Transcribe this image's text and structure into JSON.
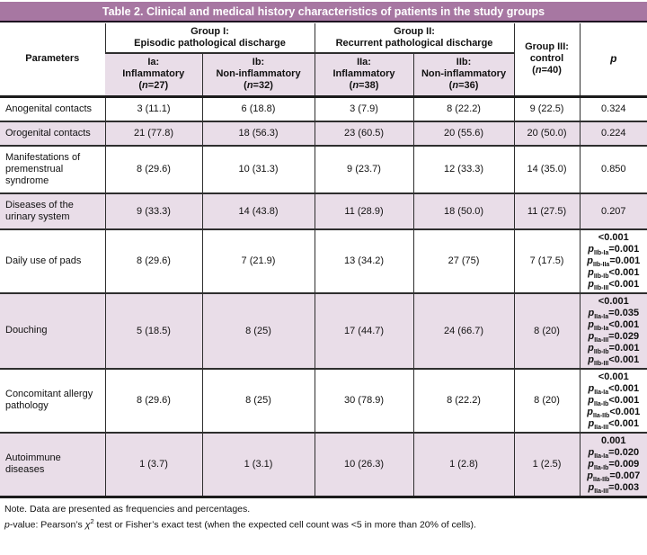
{
  "title": "Table 2. Clinical and medical history characteristics of patients in the study groups",
  "colors": {
    "title_bg": "#a777a2",
    "title_text": "#ffffff",
    "row_shade": "#e9dde8",
    "rule": "#2e2e2e"
  },
  "header": {
    "parameters": "Parameters",
    "p_label": "p",
    "group1": {
      "line1": "Group I:",
      "line2": "Episodic pathological discharge"
    },
    "group2": {
      "line1": "Group II:",
      "line2": "Recurrent pathological discharge"
    },
    "group3": {
      "line1": "Group III:",
      "line2": "control",
      "n_text": "(n=40)"
    },
    "subgroups": [
      {
        "code": "Ia:",
        "type": "Inflammatory",
        "n_text": "(n=27)"
      },
      {
        "code": "Ib:",
        "type": "Non-inflammatory",
        "n_text": "(n=32)"
      },
      {
        "code": "IIa:",
        "type": "Inflammatory",
        "n_text": "(n=38)"
      },
      {
        "code": "IIb:",
        "type": "Non-inflammatory",
        "n_text": "(n=36)"
      }
    ]
  },
  "rows": [
    {
      "parameter": "Anogenital contacts",
      "shaded": false,
      "values": [
        "3 (11.1)",
        "6 (18.8)",
        "3 (7.9)",
        "8 (22.2)",
        "9 (22.5)"
      ],
      "p_lines": [
        {
          "text": "0.324"
        }
      ]
    },
    {
      "parameter": "Orogenital contacts",
      "shaded": true,
      "values": [
        "21 (77.8)",
        "18 (56.3)",
        "23 (60.5)",
        "20 (55.6)",
        "20 (50.0)"
      ],
      "p_lines": [
        {
          "text": "0.224"
        }
      ]
    },
    {
      "parameter": "Manifestations of premenstrual syndrome",
      "shaded": false,
      "values": [
        "8 (29.6)",
        "10 (31.3)",
        "9 (23.7)",
        "12 (33.3)",
        "14 (35.0)"
      ],
      "p_lines": [
        {
          "text": "0.850"
        }
      ]
    },
    {
      "parameter": "Diseases of the urinary system",
      "shaded": true,
      "values": [
        "9 (33.3)",
        "14 (43.8)",
        "11 (28.9)",
        "18 (50.0)",
        "11 (27.5)"
      ],
      "p_lines": [
        {
          "text": "0.207"
        }
      ]
    },
    {
      "parameter": "Daily use of pads",
      "shaded": false,
      "values": [
        "8 (29.6)",
        "7 (21.9)",
        "13 (34.2)",
        "27 (75)",
        "7 (17.5)"
      ],
      "p_lines": [
        {
          "text": "<0.001"
        },
        {
          "sub": "IIb-Ia",
          "text": "=0.001"
        },
        {
          "sub": "IIb-IIa",
          "text": "=0.001"
        },
        {
          "sub": "IIb-Ib",
          "text": "<0.001"
        },
        {
          "sub": "IIb-III",
          "text": "<0.001"
        }
      ]
    },
    {
      "parameter": "Douching",
      "shaded": true,
      "values": [
        "5 (18.5)",
        "8 (25)",
        "17 (44.7)",
        "24 (66.7)",
        "8 (20)"
      ],
      "p_lines": [
        {
          "text": "<0.001"
        },
        {
          "sub": "IIa-Ia",
          "text": "=0.035"
        },
        {
          "sub": "IIb-Ia",
          "text": "<0.001"
        },
        {
          "sub": "IIa-III",
          "text": "=0.029"
        },
        {
          "sub": "IIb-Ib",
          "text": "=0.001"
        },
        {
          "sub": "IIb-III",
          "text": "<0.001"
        }
      ]
    },
    {
      "parameter": "Concomitant allergy pathology",
      "shaded": false,
      "values": [
        "8 (29.6)",
        "8 (25)",
        "30 (78.9)",
        "8 (22.2)",
        "8 (20)"
      ],
      "p_lines": [
        {
          "text": "<0.001"
        },
        {
          "sub": "IIa-Ia",
          "text": "<0.001"
        },
        {
          "sub": "IIa-Ib",
          "text": "<0.001"
        },
        {
          "sub": "IIa-IIb",
          "text": "<0.001"
        },
        {
          "sub": "IIa-III",
          "text": "<0.001"
        }
      ]
    },
    {
      "parameter": "Autoimmune diseases",
      "shaded": true,
      "values": [
        "1 (3.7)",
        "1 (3.1)",
        "10 (26.3)",
        "1 (2.8)",
        "1 (2.5)"
      ],
      "p_lines": [
        {
          "text": "0.001"
        },
        {
          "sub": "IIa-Ia",
          "text": "=0.020"
        },
        {
          "sub": "IIa-Ib",
          "text": "=0.009"
        },
        {
          "sub": "IIa-IIb",
          "text": "=0.007"
        },
        {
          "sub": "IIa-III",
          "text": "=0.003"
        }
      ]
    }
  ],
  "footnotes": {
    "line1": "Note. Data are presented as frequencies and percentages.",
    "line2_segments": [
      {
        "text": "p",
        "style": "italic"
      },
      {
        "text": "-value: Pearson’s "
      },
      {
        "text": "χ",
        "style": "italic"
      },
      {
        "text": "2",
        "style": "sup"
      },
      {
        "text": " test or Fisher’s exact test (when the expected cell count was <5 in more than 20% of cells)."
      }
    ]
  }
}
